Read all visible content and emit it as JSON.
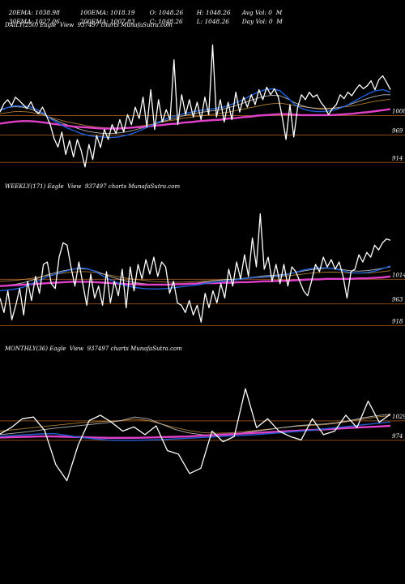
{
  "header": {
    "row1": [
      "20EMA: 1038.98",
      "100EMA: 1018.19",
      "O: 1048.26",
      "H: 1048.26",
      "Avg Vol: 0  M"
    ],
    "row2": [
      "30EMA: 1027.06",
      "200EMA: 1007.83",
      "C: 1048.26",
      "L: 1048.26",
      "Day Vol: 0  M"
    ]
  },
  "chart_data": [
    {
      "type": "line",
      "title": "DAILY(250) Eagle  View  937497 charts MunafaSutra.com",
      "y_ticks": [
        "1008",
        "969",
        "914"
      ],
      "ylim": [
        890,
        1175
      ],
      "colors": {
        "price": "#ffffff",
        "ema_fast": "#1f5fd6",
        "ema_mid": "#c9c9c9",
        "ema_slow": "#c08a3a",
        "ema_long": "#e040c8",
        "ref_line": "#8a4a1a"
      },
      "series": [
        {
          "role": "price",
          "values": [
            1015,
            1032,
            1040,
            1028,
            1045,
            1038,
            1030,
            1022,
            1036,
            1018,
            1012,
            1025,
            1008,
            990,
            962,
            945,
            975,
            930,
            958,
            925,
            960,
            938,
            905,
            950,
            920,
            968,
            944,
            980,
            960,
            990,
            972,
            1000,
            975,
            1010,
            990,
            1025,
            1002,
            1045,
            985,
            1060,
            980,
            1040,
            995,
            1020,
            1000,
            1120,
            990,
            1050,
            1010,
            1040,
            1005,
            1035,
            1000,
            1045,
            1010,
            1150,
            1005,
            1040,
            995,
            1035,
            1000,
            1055,
            1015,
            1045,
            1025,
            1050,
            1030,
            1060,
            1040,
            1065,
            1050,
            1062,
            1045,
            1005,
            960,
            1030,
            965,
            1025,
            1050,
            1040,
            1055,
            1045,
            1050,
            1035,
            1025,
            1010,
            1022,
            1030,
            1050,
            1042,
            1055,
            1048,
            1060,
            1070,
            1062,
            1068,
            1078,
            1060,
            1080,
            1088,
            1075,
            1060
          ]
        },
        {
          "role": "ema_fast",
          "values": [
            1018,
            1024,
            1028,
            1027,
            1026,
            1020,
            1012,
            1000,
            992,
            984,
            978,
            972,
            968,
            966,
            965,
            964,
            965,
            968,
            972,
            978,
            985,
            992,
            998,
            1004,
            1008,
            1012,
            1015,
            1018,
            1020,
            1022,
            1024,
            1028,
            1034,
            1040,
            1048,
            1055,
            1060,
            1062,
            1058,
            1045,
            1030,
            1022,
            1018,
            1016,
            1016,
            1018,
            1022,
            1028,
            1036,
            1044,
            1052,
            1058,
            1060,
            1055
          ]
        },
        {
          "role": "ema_mid",
          "values": [
            1020,
            1024,
            1026,
            1025,
            1022,
            1016,
            1010,
            1002,
            996,
            990,
            985,
            980,
            976,
            974,
            972,
            972,
            973,
            975,
            978,
            982,
            986,
            991,
            996,
            1000,
            1004,
            1008,
            1011,
            1014,
            1016,
            1018,
            1020,
            1024,
            1028,
            1033,
            1038,
            1043,
            1047,
            1049,
            1048,
            1042,
            1034,
            1028,
            1024,
            1022,
            1021,
            1022,
            1024,
            1028,
            1033,
            1038,
            1043,
            1047,
            1050,
            1050
          ]
        },
        {
          "role": "ema_slow",
          "values": [
            1012,
            1014,
            1016,
            1016,
            1015,
            1012,
            1008,
            1004,
            1000,
            996,
            993,
            990,
            987,
            985,
            984,
            983,
            983,
            984,
            985,
            987,
            989,
            992,
            995,
            998,
            1000,
            1003,
            1005,
            1007,
            1009,
            1011,
            1013,
            1015,
            1018,
            1021,
            1024,
            1027,
            1030,
            1032,
            1033,
            1031,
            1028,
            1026,
            1024,
            1023,
            1023,
            1023,
            1024,
            1026,
            1028,
            1031,
            1034,
            1037,
            1039,
            1041
          ]
        },
        {
          "role": "ema_long",
          "values": [
            992,
            994,
            996,
            997,
            997,
            996,
            994,
            992,
            990,
            988,
            986,
            985,
            984,
            983,
            982,
            982,
            982,
            983,
            984,
            985,
            986,
            988,
            989,
            991,
            992,
            994,
            995,
            997,
            998,
            999,
            1000,
            1002,
            1003,
            1005,
            1006,
            1008,
            1009,
            1010,
            1011,
            1011,
            1010,
            1009,
            1009,
            1009,
            1009,
            1009,
            1010,
            1011,
            1012,
            1014,
            1015,
            1017,
            1019,
            1021
          ]
        }
      ]
    },
    {
      "type": "line",
      "title": "WEEKLY(171) Eagle  View  937497 charts MunafaSutra.com",
      "y_ticks": [
        "1014",
        "963",
        "918"
      ],
      "ylim": [
        900,
        1190
      ],
      "colors": {
        "price": "#ffffff",
        "ema_fast": "#1f5fd6",
        "ema_mid": "#c9c9c9",
        "ema_slow": "#c08a3a",
        "ema_long": "#e040c8",
        "ref_line": "#8a4a1a"
      },
      "series": [
        {
          "role": "price",
          "values": [
            975,
            945,
            990,
            930,
            960,
            995,
            940,
            1010,
            970,
            1020,
            985,
            1045,
            1050,
            1005,
            995,
            1060,
            1090,
            1085,
            1040,
            1000,
            1050,
            1005,
            960,
            1025,
            975,
            1000,
            960,
            1030,
            965,
            1010,
            980,
            1035,
            955,
            1040,
            990,
            1045,
            1015,
            1055,
            1025,
            1060,
            1020,
            1050,
            1040,
            985,
            1010,
            965,
            960,
            945,
            970,
            940,
            960,
            925,
            985,
            955,
            990,
            965,
            1005,
            975,
            1035,
            1000,
            1050,
            1015,
            1065,
            1020,
            1100,
            1040,
            1150,
            1035,
            1060,
            1010,
            1045,
            1005,
            1045,
            1000,
            1040,
            1030,
            1010,
            990,
            980,
            1010,
            1045,
            1030,
            1060,
            1040,
            1055,
            1035,
            1050,
            1020,
            975,
            1030,
            1035,
            1065,
            1050,
            1070,
            1060,
            1085,
            1075,
            1090,
            1098,
            1095
          ]
        },
        {
          "role": "ema_fast",
          "values": [
            990,
            992,
            994,
            998,
            1005,
            1012,
            1020,
            1025,
            1030,
            1034,
            1038,
            1036,
            1030,
            1020,
            1012,
            1005,
            1000,
            997,
            995,
            994,
            994,
            995,
            997,
            999,
            1001,
            1003,
            1006,
            1008,
            1010,
            1012,
            1014,
            1016,
            1018,
            1019,
            1020,
            1021,
            1024,
            1028,
            1033,
            1036,
            1038,
            1038,
            1036,
            1032,
            1028,
            1027,
            1028,
            1031,
            1036,
            1042
          ]
        },
        {
          "role": "ema_mid",
          "values": [
            1000,
            1002,
            1004,
            1007,
            1012,
            1018,
            1024,
            1028,
            1032,
            1035,
            1036,
            1035,
            1031,
            1025,
            1019,
            1014,
            1010,
            1007,
            1005,
            1003,
            1002,
            1002,
            1003,
            1004,
            1005,
            1007,
            1009,
            1011,
            1013,
            1014,
            1015,
            1017,
            1019,
            1021,
            1022,
            1023,
            1025,
            1028,
            1031,
            1034,
            1036,
            1037,
            1036,
            1034,
            1032,
            1031,
            1032,
            1034,
            1037,
            1040
          ]
        },
        {
          "role": "ema_slow",
          "values": [
            1010,
            1011,
            1012,
            1014,
            1016,
            1019,
            1022,
            1025,
            1027,
            1029,
            1030,
            1030,
            1028,
            1025,
            1022,
            1019,
            1016,
            1014,
            1012,
            1010,
            1009,
            1008,
            1008,
            1008,
            1009,
            1010,
            1011,
            1012,
            1013,
            1014,
            1015,
            1016,
            1017,
            1018,
            1019,
            1020,
            1021,
            1023,
            1025,
            1027,
            1028,
            1029,
            1029,
            1028,
            1027,
            1027,
            1027,
            1028,
            1030,
            1032
          ]
        },
        {
          "role": "ema_long",
          "values": [
            1000,
            1001,
            1002,
            1003,
            1004,
            1005,
            1006,
            1007,
            1008,
            1009,
            1009,
            1009,
            1008,
            1007,
            1006,
            1005,
            1004,
            1004,
            1003,
            1003,
            1003,
            1003,
            1004,
            1004,
            1005,
            1005,
            1006,
            1006,
            1007,
            1007,
            1008,
            1008,
            1009,
            1010,
            1010,
            1011,
            1011,
            1012,
            1013,
            1014,
            1014,
            1015,
            1015,
            1015,
            1015,
            1016,
            1016,
            1017,
            1018,
            1020
          ]
        }
      ]
    },
    {
      "type": "line",
      "title": "MONTHLY(36) Eagle  View  937497 charts MunafaSutra.com",
      "y_ticks": [
        "1029",
        "974"
      ],
      "ylim": [
        820,
        1210
      ],
      "colors": {
        "price": "#ffffff",
        "ema_fast": "#1f5fd6",
        "ema_mid": "#c9c9c9",
        "ema_slow": "#c08a3a",
        "ema_long": "#e040c8",
        "ref_line": "#8a4a1a"
      },
      "series": [
        {
          "role": "price",
          "values": [
            992,
            1010,
            1035,
            1040,
            1002,
            905,
            860,
            960,
            1030,
            1045,
            1025,
            1000,
            1012,
            990,
            1015,
            945,
            935,
            880,
            895,
            1000,
            970,
            985,
            1120,
            1010,
            1035,
            1000,
            985,
            975,
            1035,
            990,
            1000,
            1045,
            1010,
            1085,
            1025,
            1048
          ]
        },
        {
          "role": "ema_fast",
          "values": [
            985,
            988,
            990,
            992,
            993,
            988,
            982,
            978,
            975,
            974,
            974,
            975,
            976,
            978,
            980,
            982,
            984,
            986,
            988,
            990,
            993,
            996,
            999,
            1002,
            1006,
            1010,
            1014,
            1018,
            1022,
            1026
          ]
        },
        {
          "role": "ema_mid",
          "values": [
            990,
            994,
            998,
            1003,
            1008,
            1012,
            1016,
            1020,
            1024,
            1030,
            1040,
            1035,
            1020,
            1005,
            995,
            990,
            988,
            990,
            995,
            1000,
            1005,
            1010,
            1015,
            1018,
            1020,
            1024,
            1030,
            1038,
            1044,
            1048
          ]
        },
        {
          "role": "ema_slow",
          "values": [
            1000,
            1004,
            1008,
            1012,
            1016,
            1020,
            1024,
            1026,
            1028,
            1030,
            1034,
            1030,
            1020,
            1010,
            1002,
            996,
            994,
            995,
            998,
            1002,
            1006,
            1010,
            1014,
            1016,
            1018,
            1022,
            1028,
            1034,
            1040,
            1044
          ]
        },
        {
          "role": "ema_long",
          "values": [
            982,
            983,
            984,
            985,
            985,
            984,
            983,
            982,
            981,
            981,
            981,
            982,
            983,
            984,
            985,
            987,
            989,
            991,
            993,
            995,
            997,
            999,
            1001,
            1003,
            1005,
            1007,
            1009,
            1011,
            1013,
            1015
          ]
        }
      ]
    }
  ]
}
